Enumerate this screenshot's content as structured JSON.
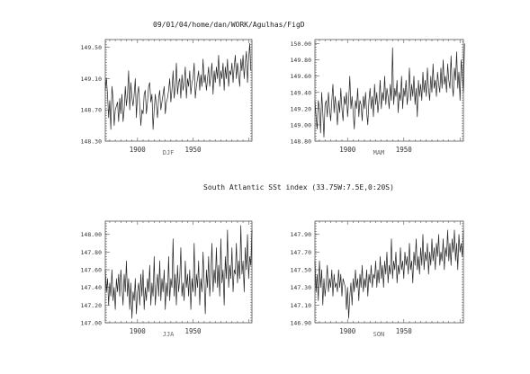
{
  "header": "09/01/04/home/dan/WORK/Agulhas/FigD",
  "subtitle": "South Atlantic SSt index (33.75W:7.5E,0:20S)",
  "chart_data": [
    {
      "type": "line",
      "season": "DJF",
      "xlabel": "DJF",
      "xlim": [
        1871,
        2003
      ],
      "ylim": [
        148.3,
        149.6
      ],
      "yticks": [
        "148.30",
        "148.70",
        "149.10",
        "149.50"
      ],
      "xticks": [
        "1900",
        "1950"
      ],
      "x_start": 1871,
      "values": [
        148.95,
        149.1,
        148.9,
        148.6,
        148.82,
        148.45,
        149.0,
        148.85,
        148.5,
        148.7,
        148.75,
        148.8,
        148.55,
        148.85,
        148.65,
        148.9,
        148.55,
        148.7,
        149.0,
        148.75,
        148.9,
        149.2,
        148.7,
        149.05,
        148.85,
        148.75,
        148.9,
        149.1,
        148.6,
        148.9,
        149.0,
        148.75,
        148.5,
        148.7,
        148.65,
        148.9,
        148.95,
        148.65,
        148.8,
        149.0,
        149.05,
        148.8,
        148.9,
        148.45,
        148.7,
        148.9,
        148.75,
        148.6,
        148.85,
        148.95,
        148.7,
        148.8,
        148.9,
        149.0,
        148.65,
        148.8,
        148.85,
        148.95,
        149.1,
        148.8,
        148.95,
        149.2,
        148.85,
        149.0,
        149.3,
        148.9,
        149.05,
        149.1,
        148.85,
        149.15,
        148.95,
        149.05,
        149.25,
        148.85,
        149.1,
        149.0,
        149.2,
        148.9,
        149.05,
        149.1,
        149.3,
        148.85,
        149.0,
        149.1,
        149.2,
        148.95,
        149.15,
        149.0,
        149.35,
        149.05,
        149.15,
        148.95,
        149.1,
        149.25,
        149.0,
        149.15,
        149.3,
        148.9,
        149.2,
        149.05,
        149.25,
        149.1,
        149.4,
        149.0,
        149.2,
        149.1,
        149.3,
        148.95,
        149.25,
        149.1,
        149.35,
        149.0,
        149.2,
        149.15,
        149.3,
        149.05,
        149.25,
        149.4,
        149.1,
        149.3,
        149.15,
        149.0,
        149.35,
        149.2,
        149.4,
        149.1,
        149.3,
        149.45,
        149.05,
        149.35,
        149.55,
        149.2
      ]
    },
    {
      "type": "line",
      "season": "MAM",
      "xlabel": "MAM",
      "xlim": [
        1871,
        2003
      ],
      "ylim": [
        148.8,
        150.05
      ],
      "yticks": [
        "148.80",
        "149.00",
        "149.20",
        "149.40",
        "149.60",
        "149.80",
        "150.00"
      ],
      "xticks": [
        "1900",
        "1950"
      ],
      "x_start": 1871,
      "values": [
        149.3,
        149.1,
        148.95,
        149.3,
        149.2,
        148.9,
        149.4,
        149.15,
        148.85,
        149.25,
        149.3,
        149.1,
        149.4,
        149.2,
        149.05,
        149.3,
        149.5,
        149.15,
        149.35,
        149.2,
        149.0,
        149.3,
        149.15,
        149.45,
        149.2,
        149.05,
        149.35,
        149.25,
        149.4,
        149.1,
        149.3,
        149.6,
        149.2,
        149.35,
        149.15,
        148.95,
        149.3,
        149.2,
        149.45,
        149.1,
        149.3,
        149.25,
        149.05,
        149.35,
        149.2,
        149.4,
        149.15,
        149.0,
        149.3,
        149.45,
        149.2,
        149.35,
        149.1,
        149.5,
        149.25,
        149.4,
        149.15,
        149.3,
        149.55,
        149.2,
        149.4,
        149.3,
        149.6,
        149.25,
        149.45,
        149.35,
        149.2,
        149.5,
        149.3,
        149.95,
        149.25,
        149.45,
        149.35,
        149.55,
        149.15,
        149.4,
        149.3,
        149.6,
        149.2,
        149.45,
        149.35,
        149.55,
        149.25,
        149.4,
        149.7,
        149.3,
        149.5,
        149.35,
        149.6,
        149.25,
        149.45,
        149.1,
        149.55,
        149.35,
        149.5,
        149.3,
        149.65,
        149.4,
        149.55,
        149.35,
        149.7,
        149.45,
        149.3,
        149.6,
        149.4,
        149.75,
        149.45,
        149.55,
        149.35,
        149.65,
        149.5,
        149.4,
        149.7,
        149.45,
        149.8,
        149.5,
        149.6,
        149.4,
        149.75,
        149.55,
        149.45,
        149.85,
        149.5,
        149.35,
        149.7,
        149.55,
        149.9,
        149.45,
        149.65,
        149.3,
        149.8,
        149.6,
        149.4,
        150.0
      ]
    },
    {
      "type": "line",
      "season": "JJA",
      "xlabel": "JJA",
      "xlim": [
        1871,
        2003
      ],
      "ylim": [
        147.0,
        148.15
      ],
      "yticks": [
        "147.00",
        "147.20",
        "147.40",
        "147.60",
        "147.80",
        "148.00"
      ],
      "xticks": [
        "1900",
        "1950"
      ],
      "x_start": 1871,
      "values": [
        147.6,
        147.35,
        147.5,
        147.2,
        147.45,
        147.3,
        147.6,
        147.25,
        147.4,
        147.15,
        147.5,
        147.35,
        147.55,
        147.3,
        147.6,
        147.4,
        147.2,
        147.55,
        147.35,
        147.7,
        147.3,
        147.5,
        147.15,
        147.45,
        147.05,
        147.35,
        147.25,
        147.5,
        147.1,
        147.35,
        147.45,
        147.2,
        147.55,
        147.3,
        147.6,
        147.15,
        147.4,
        147.25,
        147.5,
        147.35,
        147.65,
        147.2,
        147.45,
        147.3,
        147.75,
        147.2,
        147.4,
        147.55,
        147.3,
        147.7,
        147.25,
        147.5,
        147.35,
        147.6,
        147.15,
        147.45,
        147.3,
        147.75,
        147.25,
        147.5,
        147.4,
        147.95,
        147.3,
        147.55,
        147.2,
        147.65,
        147.35,
        147.5,
        147.85,
        147.3,
        147.45,
        147.25,
        147.7,
        147.4,
        147.55,
        147.3,
        147.6,
        147.15,
        147.5,
        147.35,
        147.9,
        147.3,
        147.55,
        147.4,
        147.7,
        147.2,
        147.5,
        147.35,
        147.8,
        147.45,
        147.1,
        147.6,
        147.4,
        147.75,
        147.3,
        147.55,
        147.9,
        147.35,
        147.6,
        147.45,
        147.85,
        147.4,
        147.65,
        147.3,
        147.95,
        147.45,
        147.6,
        147.2,
        147.75,
        147.5,
        148.05,
        147.4,
        147.65,
        147.5,
        147.85,
        147.35,
        147.6,
        147.55,
        147.9,
        147.45,
        147.7,
        147.5,
        148.1,
        147.55,
        147.7,
        147.35,
        147.85,
        147.6,
        148.0,
        147.5,
        147.75,
        147.65,
        148.05
      ]
    },
    {
      "type": "line",
      "season": "SON",
      "xlabel": "SON",
      "xlim": [
        1871,
        2003
      ],
      "ylim": [
        146.9,
        148.05
      ],
      "yticks": [
        "146.90",
        "147.10",
        "147.30",
        "147.50",
        "147.70",
        "147.90"
      ],
      "xticks": [
        "1900",
        "1950"
      ],
      "x_start": 1871,
      "values": [
        147.6,
        147.25,
        147.45,
        147.15,
        147.6,
        147.3,
        147.5,
        147.1,
        147.4,
        147.2,
        147.35,
        147.55,
        147.25,
        147.4,
        147.3,
        147.5,
        147.2,
        147.45,
        147.3,
        147.35,
        147.25,
        147.5,
        147.3,
        147.45,
        147.2,
        147.4,
        147.35,
        147.3,
        147.05,
        147.3,
        146.95,
        147.2,
        147.35,
        147.1,
        147.4,
        147.25,
        147.5,
        147.3,
        147.4,
        147.15,
        147.45,
        147.3,
        147.55,
        147.25,
        147.4,
        147.3,
        147.5,
        147.2,
        147.45,
        147.35,
        147.55,
        147.3,
        147.45,
        147.4,
        147.6,
        147.3,
        147.5,
        147.35,
        147.65,
        147.4,
        147.55,
        147.3,
        147.6,
        147.45,
        147.7,
        147.35,
        147.55,
        147.45,
        147.85,
        147.4,
        147.6,
        147.5,
        147.7,
        147.35,
        147.55,
        147.45,
        147.75,
        147.5,
        147.6,
        147.4,
        147.7,
        147.55,
        147.65,
        147.45,
        147.8,
        147.5,
        147.6,
        147.35,
        147.7,
        147.55,
        147.85,
        147.5,
        147.65,
        147.45,
        147.75,
        147.55,
        147.9,
        147.5,
        147.7,
        147.6,
        147.8,
        147.45,
        147.7,
        147.55,
        147.85,
        147.6,
        147.75,
        147.5,
        147.8,
        147.65,
        147.9,
        147.55,
        147.7,
        147.6,
        147.85,
        147.5,
        147.75,
        147.65,
        147.95,
        147.6,
        147.8,
        147.55,
        147.85,
        147.7,
        147.95,
        147.6,
        147.8,
        147.5,
        147.9,
        147.7,
        147.8,
        147.65,
        147.95
      ]
    }
  ]
}
